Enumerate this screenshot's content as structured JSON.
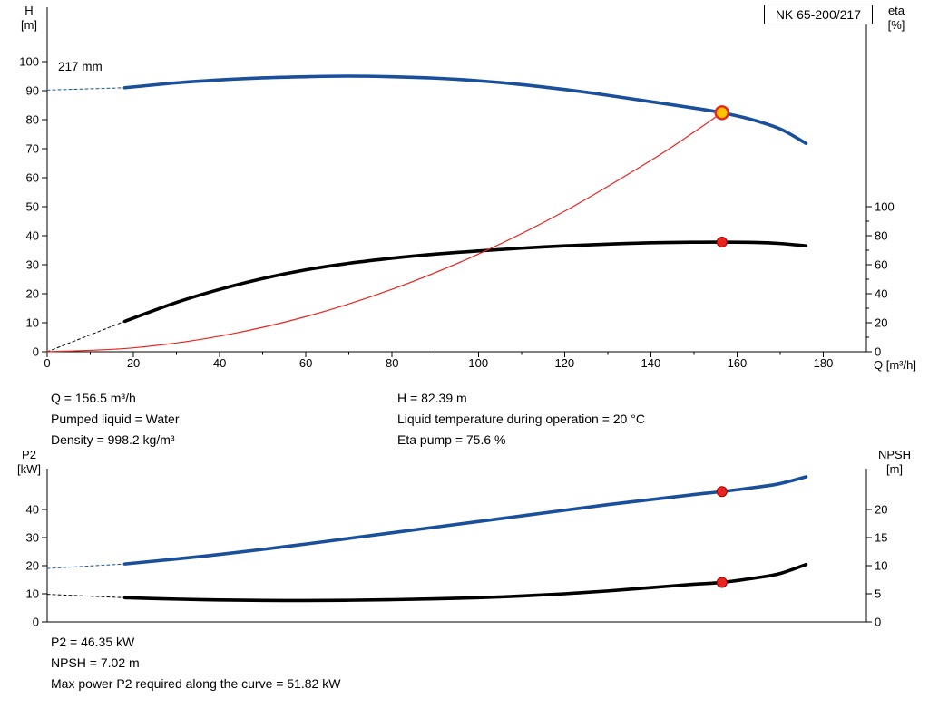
{
  "pump": {
    "model": "NK 65-200/217",
    "impeller": "217 mm"
  },
  "labels": {
    "h_axis": [
      "H",
      "[m]"
    ],
    "eta_axis": [
      "eta",
      "[%]"
    ],
    "q_axis": "Q [m³/h]",
    "p2_axis": [
      "P2",
      "[kW]"
    ],
    "npsh_axis": [
      "NPSH",
      "[m]"
    ]
  },
  "operating_point": {
    "q": "Q = 156.5 m³/h",
    "pumped_liquid": "Pumped liquid = Water",
    "density": "Density = 998.2 kg/m³",
    "h": "H = 82.39 m",
    "liquid_temp": "Liquid temperature during operation = 20 °C",
    "eta_pump": "Eta pump = 75.6 %",
    "p2": "P2 = 46.35 kW",
    "npsh": "NPSH = 7.02 m",
    "max_p2": "Max power P2 required along the curve = 51.82 kW"
  },
  "colors": {
    "curve_blue": "#1a4f9b",
    "curve_black": "#000000",
    "system_red": "#e8251f",
    "duty_fill": "#ffc400",
    "duty_stroke": "#e8251f"
  },
  "chart_data": [
    {
      "id": "qh",
      "type": "line",
      "title": "NK 65-200/217",
      "xlabel": "Q [m³/h]",
      "ylabel_left": "H [m]",
      "ylabel_right": "eta [%]",
      "xlim": [
        0,
        190
      ],
      "ylim_left": [
        0,
        118.75
      ],
      "ylim_right": [
        0,
        237.5
      ],
      "x_ticks": [
        0,
        20,
        40,
        60,
        80,
        100,
        120,
        140,
        160,
        180
      ],
      "x_minor": [
        10,
        30,
        50,
        70,
        90,
        110,
        130,
        150,
        170
      ],
      "left_ticks": [
        0,
        10,
        20,
        30,
        40,
        50,
        60,
        70,
        80,
        90,
        100
      ],
      "right_ticks": [
        0,
        20,
        40,
        60,
        80,
        100
      ],
      "right_minor": [
        10,
        30,
        50,
        70,
        90
      ],
      "series": [
        {
          "name": "head-curve-extrapolation",
          "axis": "left",
          "color": "#1a4f9b",
          "width": 1,
          "dash": "3 3",
          "points": [
            [
              0,
              90.2
            ],
            [
              18,
              91
            ]
          ]
        },
        {
          "name": "head-curve",
          "axis": "left",
          "color": "#1a4f9b",
          "width": 3.6,
          "points": [
            [
              18,
              91
            ],
            [
              30,
              92.7
            ],
            [
              40,
              93.7
            ],
            [
              50,
              94.4
            ],
            [
              60,
              94.8
            ],
            [
              70,
              95.0
            ],
            [
              80,
              94.8
            ],
            [
              90,
              94.3
            ],
            [
              100,
              93.4
            ],
            [
              110,
              92.1
            ],
            [
              120,
              90.4
            ],
            [
              130,
              88.4
            ],
            [
              140,
              86.2
            ],
            [
              150,
              84.0
            ],
            [
              156.5,
              82.39
            ],
            [
              163,
              80.2
            ],
            [
              170,
              76.8
            ],
            [
              176,
              71.8
            ]
          ]
        },
        {
          "name": "eta-curve-extrapolation",
          "axis": "right",
          "color": "#000000",
          "width": 1,
          "dash": "3 3",
          "points": [
            [
              0,
              0
            ],
            [
              18,
              21
            ]
          ]
        },
        {
          "name": "eta-curve",
          "axis": "right",
          "color": "#000000",
          "width": 3.6,
          "points": [
            [
              18,
              21
            ],
            [
              30,
              34
            ],
            [
              40,
              43
            ],
            [
              50,
              50.5
            ],
            [
              60,
              56.5
            ],
            [
              70,
              61
            ],
            [
              80,
              64.5
            ],
            [
              90,
              67.3
            ],
            [
              100,
              69.5
            ],
            [
              110,
              71.4
            ],
            [
              120,
              73
            ],
            [
              130,
              74.2
            ],
            [
              140,
              75.1
            ],
            [
              150,
              75.5
            ],
            [
              156.5,
              75.6
            ],
            [
              165,
              75.3
            ],
            [
              170,
              74.6
            ],
            [
              176,
              73
            ]
          ]
        },
        {
          "name": "system-curve",
          "axis": "left",
          "color": "#e8251f",
          "width": 1.2,
          "points": [
            [
              0,
              0
            ],
            [
              20,
              1.35
            ],
            [
              40,
              5.38
            ],
            [
              60,
              12.11
            ],
            [
              80,
              21.53
            ],
            [
              100,
              33.64
            ],
            [
              120,
              48.44
            ],
            [
              140,
              65.94
            ],
            [
              150,
              75.7
            ],
            [
              156.5,
              82.39
            ]
          ]
        }
      ],
      "markers": [
        {
          "name": "duty-point",
          "axis": "left",
          "x": 156.5,
          "y": 82.39,
          "r": 7,
          "fill": "#ffc400",
          "stroke": "#e8251f",
          "stroke_width": 2.5
        },
        {
          "name": "eta-duty-point",
          "axis": "right",
          "x": 156.5,
          "y": 75.6,
          "r": 5.5,
          "fill": "#e8251f",
          "stroke": "#a00000",
          "stroke_width": 1
        }
      ]
    },
    {
      "id": "p2",
      "type": "line",
      "title": "P2 / NPSH curves",
      "xlabel": "",
      "ylabel_left": "P2 [kW]",
      "ylabel_right": "NPSH [m]",
      "xlim": [
        0,
        190
      ],
      "ylim_left": [
        0,
        54.5
      ],
      "ylim_right": [
        0,
        27.25
      ],
      "x_ticks": [],
      "x_minor": [],
      "left_ticks": [
        0,
        10,
        20,
        30,
        40
      ],
      "right_ticks": [
        0,
        5,
        10,
        15,
        20
      ],
      "right_minor": [],
      "series": [
        {
          "name": "p2-curve-extrapolation",
          "axis": "left",
          "color": "#1a4f9b",
          "width": 1,
          "dash": "3 3",
          "points": [
            [
              0,
              19
            ],
            [
              18,
              20.6
            ]
          ]
        },
        {
          "name": "p2-curve",
          "axis": "left",
          "color": "#1a4f9b",
          "width": 3.6,
          "points": [
            [
              18,
              20.6
            ],
            [
              30,
              22.4
            ],
            [
              40,
              24
            ],
            [
              50,
              25.8
            ],
            [
              60,
              27.7
            ],
            [
              70,
              29.7
            ],
            [
              80,
              31.7
            ],
            [
              90,
              33.7
            ],
            [
              100,
              35.7
            ],
            [
              110,
              37.7
            ],
            [
              120,
              39.7
            ],
            [
              130,
              41.7
            ],
            [
              140,
              43.5
            ],
            [
              150,
              45.3
            ],
            [
              156.5,
              46.35
            ],
            [
              165,
              48.0
            ],
            [
              170,
              49.2
            ],
            [
              176,
              51.6
            ]
          ]
        },
        {
          "name": "npsh-curve-extrapolation",
          "axis": "right",
          "color": "#000000",
          "width": 1,
          "dash": "3 3",
          "points": [
            [
              0,
              4.9
            ],
            [
              18,
              4.3
            ]
          ]
        },
        {
          "name": "npsh-curve",
          "axis": "right",
          "color": "#000000",
          "width": 3.6,
          "points": [
            [
              18,
              4.3
            ],
            [
              30,
              4.05
            ],
            [
              40,
              3.9
            ],
            [
              50,
              3.82
            ],
            [
              60,
              3.8
            ],
            [
              70,
              3.85
            ],
            [
              80,
              3.95
            ],
            [
              90,
              4.1
            ],
            [
              100,
              4.3
            ],
            [
              110,
              4.6
            ],
            [
              120,
              5.0
            ],
            [
              130,
              5.5
            ],
            [
              140,
              6.1
            ],
            [
              150,
              6.7
            ],
            [
              156.5,
              7.02
            ],
            [
              165,
              7.9
            ],
            [
              170,
              8.6
            ],
            [
              176,
              10.2
            ]
          ]
        }
      ],
      "markers": [
        {
          "name": "p2-duty-point",
          "axis": "left",
          "x": 156.5,
          "y": 46.35,
          "r": 5.5,
          "fill": "#e8251f",
          "stroke": "#a00000",
          "stroke_width": 1
        },
        {
          "name": "npsh-duty-point",
          "axis": "right",
          "x": 156.5,
          "y": 7.02,
          "r": 5.5,
          "fill": "#e8251f",
          "stroke": "#a00000",
          "stroke_width": 1
        }
      ]
    }
  ]
}
